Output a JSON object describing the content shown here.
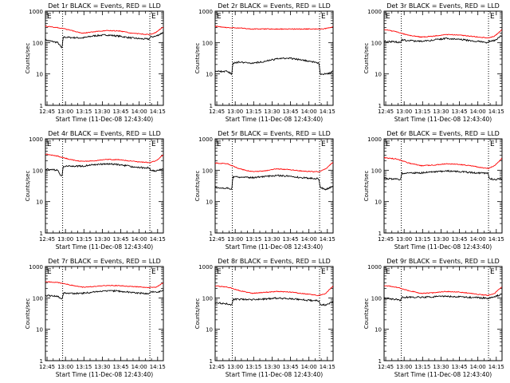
{
  "figure": {
    "xlabel": "Start Time (11-Dec-08 12:43:40)",
    "ylabel": "Counts/sec",
    "x_tick_labels": [
      "12:45",
      "13:00",
      "13:15",
      "13:30",
      "13:45",
      "14:00",
      "14:15"
    ],
    "y_tick_labels": [
      "1",
      "10",
      "100",
      "1000"
    ],
    "corner_labels": [
      "E",
      "E"
    ],
    "colors": {
      "events": "#000000",
      "lld": "#ff0000",
      "axes": "#000000"
    }
  },
  "chart_data": [
    {
      "type": "line",
      "title": "Det 1r BLACK = Events, RED = LLD",
      "x_unit": "minutes after 12:43:40",
      "xlim": [
        0,
        96
      ],
      "ylim": [
        1,
        1000
      ],
      "yscale": "log",
      "vlines": [
        14,
        85
      ],
      "series": [
        {
          "name": "Events",
          "color": "#000000",
          "x": [
            0,
            10,
            13.5,
            14.5,
            20,
            30,
            40,
            50,
            60,
            70,
            80,
            84.5,
            85.5,
            90,
            96
          ],
          "y": [
            120,
            100,
            65,
            150,
            145,
            140,
            165,
            175,
            160,
            140,
            130,
            130,
            150,
            160,
            210
          ]
        },
        {
          "name": "LLD",
          "color": "#ff0000",
          "x": [
            0,
            10,
            20,
            30,
            40,
            50,
            60,
            70,
            80,
            85,
            90,
            96
          ],
          "y": [
            330,
            300,
            250,
            200,
            220,
            240,
            235,
            200,
            185,
            180,
            210,
            320
          ]
        }
      ]
    },
    {
      "type": "line",
      "title": "Det 2r BLACK = Events, RED = LLD",
      "x_unit": "minutes after 12:43:40",
      "xlim": [
        0,
        96
      ],
      "ylim": [
        1,
        1000
      ],
      "yscale": "log",
      "vlines": [
        14,
        85
      ],
      "series": [
        {
          "name": "Events",
          "color": "#000000",
          "x": [
            0,
            10,
            13.5,
            14.5,
            20,
            30,
            40,
            50,
            60,
            70,
            80,
            84.5,
            85.5,
            90,
            96
          ],
          "y": [
            12,
            12,
            10,
            22,
            24,
            22,
            25,
            30,
            32,
            28,
            24,
            22,
            10,
            10,
            12
          ]
        },
        {
          "name": "LLD",
          "color": "#ff0000",
          "x": [
            0,
            10,
            20,
            30,
            40,
            50,
            60,
            70,
            80,
            85,
            90,
            96
          ],
          "y": [
            330,
            300,
            290,
            270,
            270,
            270,
            270,
            270,
            270,
            270,
            280,
            320
          ]
        }
      ]
    },
    {
      "type": "line",
      "title": "Det 3r BLACK = Events, RED = LLD",
      "x_unit": "minutes after 12:43:40",
      "xlim": [
        0,
        96
      ],
      "ylim": [
        1,
        1000
      ],
      "yscale": "log",
      "vlines": [
        14,
        85
      ],
      "series": [
        {
          "name": "Events",
          "color": "#000000",
          "x": [
            0,
            10,
            13.5,
            14.5,
            20,
            30,
            40,
            50,
            60,
            70,
            80,
            84.5,
            85.5,
            90,
            96
          ],
          "y": [
            110,
            105,
            100,
            120,
            115,
            110,
            120,
            135,
            130,
            115,
            105,
            100,
            110,
            115,
            170
          ]
        },
        {
          "name": "LLD",
          "color": "#ff0000",
          "x": [
            0,
            10,
            20,
            30,
            40,
            50,
            60,
            70,
            80,
            85,
            90,
            96
          ],
          "y": [
            260,
            220,
            170,
            150,
            160,
            180,
            175,
            160,
            145,
            140,
            160,
            260
          ]
        }
      ]
    },
    {
      "type": "line",
      "title": "Det 4r BLACK = Events, RED = LLD",
      "x_unit": "minutes after 12:43:40",
      "xlim": [
        0,
        96
      ],
      "ylim": [
        1,
        1000
      ],
      "yscale": "log",
      "vlines": [
        14,
        85
      ],
      "series": [
        {
          "name": "Events",
          "color": "#000000",
          "x": [
            0,
            10,
            13.5,
            14.5,
            20,
            30,
            40,
            50,
            60,
            70,
            80,
            84.5,
            85.5,
            90,
            96
          ],
          "y": [
            110,
            100,
            60,
            135,
            135,
            135,
            150,
            160,
            150,
            130,
            120,
            120,
            100,
            95,
            110
          ]
        },
        {
          "name": "LLD",
          "color": "#ff0000",
          "x": [
            0,
            10,
            20,
            30,
            40,
            50,
            60,
            70,
            80,
            85,
            90,
            96
          ],
          "y": [
            330,
            280,
            220,
            190,
            200,
            220,
            215,
            195,
            180,
            175,
            200,
            310
          ]
        }
      ]
    },
    {
      "type": "line",
      "title": "Det 5r BLACK = Events, RED = LLD",
      "x_unit": "minutes after 12:43:40",
      "xlim": [
        0,
        96
      ],
      "ylim": [
        1,
        1000
      ],
      "yscale": "log",
      "vlines": [
        14,
        85
      ],
      "series": [
        {
          "name": "Events",
          "color": "#000000",
          "x": [
            0,
            10,
            13.5,
            14.5,
            20,
            30,
            40,
            50,
            60,
            70,
            80,
            84.5,
            85.5,
            90,
            96
          ],
          "y": [
            28,
            27,
            25,
            62,
            60,
            58,
            62,
            68,
            65,
            58,
            55,
            54,
            28,
            25,
            30
          ]
        },
        {
          "name": "LLD",
          "color": "#ff0000",
          "x": [
            0,
            10,
            20,
            30,
            40,
            50,
            60,
            70,
            80,
            85,
            90,
            96
          ],
          "y": [
            170,
            160,
            110,
            90,
            95,
            110,
            105,
            95,
            90,
            90,
            110,
            180
          ]
        }
      ]
    },
    {
      "type": "line",
      "title": "Det 6r BLACK = Events, RED = LLD",
      "x_unit": "minutes after 12:43:40",
      "xlim": [
        0,
        96
      ],
      "ylim": [
        1,
        1000
      ],
      "yscale": "log",
      "vlines": [
        14,
        85
      ],
      "series": [
        {
          "name": "Events",
          "color": "#000000",
          "x": [
            0,
            10,
            13.5,
            14.5,
            20,
            30,
            40,
            50,
            60,
            70,
            80,
            84.5,
            85.5,
            90,
            96
          ],
          "y": [
            55,
            52,
            50,
            80,
            82,
            82,
            88,
            95,
            92,
            85,
            80,
            80,
            55,
            50,
            55
          ]
        },
        {
          "name": "LLD",
          "color": "#ff0000",
          "x": [
            0,
            10,
            20,
            30,
            40,
            50,
            60,
            70,
            80,
            85,
            90,
            96
          ],
          "y": [
            250,
            230,
            170,
            140,
            145,
            160,
            155,
            140,
            120,
            115,
            140,
            240
          ]
        }
      ]
    },
    {
      "type": "line",
      "title": "Det 7r BLACK = Events, RED = LLD",
      "x_unit": "minutes after 12:43:40",
      "xlim": [
        0,
        96
      ],
      "ylim": [
        1,
        1000
      ],
      "yscale": "log",
      "vlines": [
        14,
        85
      ],
      "series": [
        {
          "name": "Events",
          "color": "#000000",
          "x": [
            0,
            10,
            13.5,
            14.5,
            20,
            30,
            40,
            50,
            60,
            70,
            80,
            84.5,
            85.5,
            90,
            96
          ],
          "y": [
            120,
            110,
            95,
            140,
            140,
            140,
            155,
            170,
            165,
            150,
            140,
            135,
            160,
            150,
            175
          ]
        },
        {
          "name": "LLD",
          "color": "#ff0000",
          "x": [
            0,
            10,
            20,
            30,
            40,
            50,
            60,
            70,
            80,
            85,
            90,
            96
          ],
          "y": [
            330,
            310,
            260,
            220,
            230,
            250,
            245,
            230,
            220,
            215,
            220,
            300
          ]
        }
      ]
    },
    {
      "type": "line",
      "title": "Det 8r BLACK = Events, RED = LLD",
      "x_unit": "minutes after 12:43:40",
      "xlim": [
        0,
        96
      ],
      "ylim": [
        1,
        1000
      ],
      "yscale": "log",
      "vlines": [
        14,
        85
      ],
      "series": [
        {
          "name": "Events",
          "color": "#000000",
          "x": [
            0,
            10,
            13.5,
            14.5,
            20,
            30,
            40,
            50,
            60,
            70,
            80,
            84.5,
            85.5,
            90,
            96
          ],
          "y": [
            70,
            65,
            60,
            90,
            90,
            88,
            92,
            98,
            95,
            88,
            82,
            80,
            60,
            60,
            75
          ]
        },
        {
          "name": "LLD",
          "color": "#ff0000",
          "x": [
            0,
            10,
            20,
            30,
            40,
            50,
            60,
            70,
            80,
            85,
            90,
            96
          ],
          "y": [
            240,
            220,
            170,
            140,
            150,
            160,
            155,
            140,
            125,
            120,
            140,
            240
          ]
        }
      ]
    },
    {
      "type": "line",
      "title": "Det 9r BLACK = Events, RED = LLD",
      "x_unit": "minutes after 12:43:40",
      "xlim": [
        0,
        96
      ],
      "ylim": [
        1,
        1000
      ],
      "yscale": "log",
      "vlines": [
        14,
        85
      ],
      "series": [
        {
          "name": "Events",
          "color": "#000000",
          "x": [
            0,
            10,
            13.5,
            14.5,
            20,
            30,
            40,
            50,
            60,
            70,
            80,
            84.5,
            85.5,
            90,
            96
          ],
          "y": [
            95,
            90,
            85,
            105,
            105,
            105,
            108,
            112,
            110,
            105,
            100,
            98,
            100,
            110,
            130
          ]
        },
        {
          "name": "LLD",
          "color": "#ff0000",
          "x": [
            0,
            10,
            20,
            30,
            40,
            50,
            60,
            70,
            80,
            85,
            90,
            96
          ],
          "y": [
            250,
            220,
            170,
            140,
            145,
            160,
            155,
            140,
            125,
            120,
            140,
            230
          ]
        }
      ]
    }
  ]
}
